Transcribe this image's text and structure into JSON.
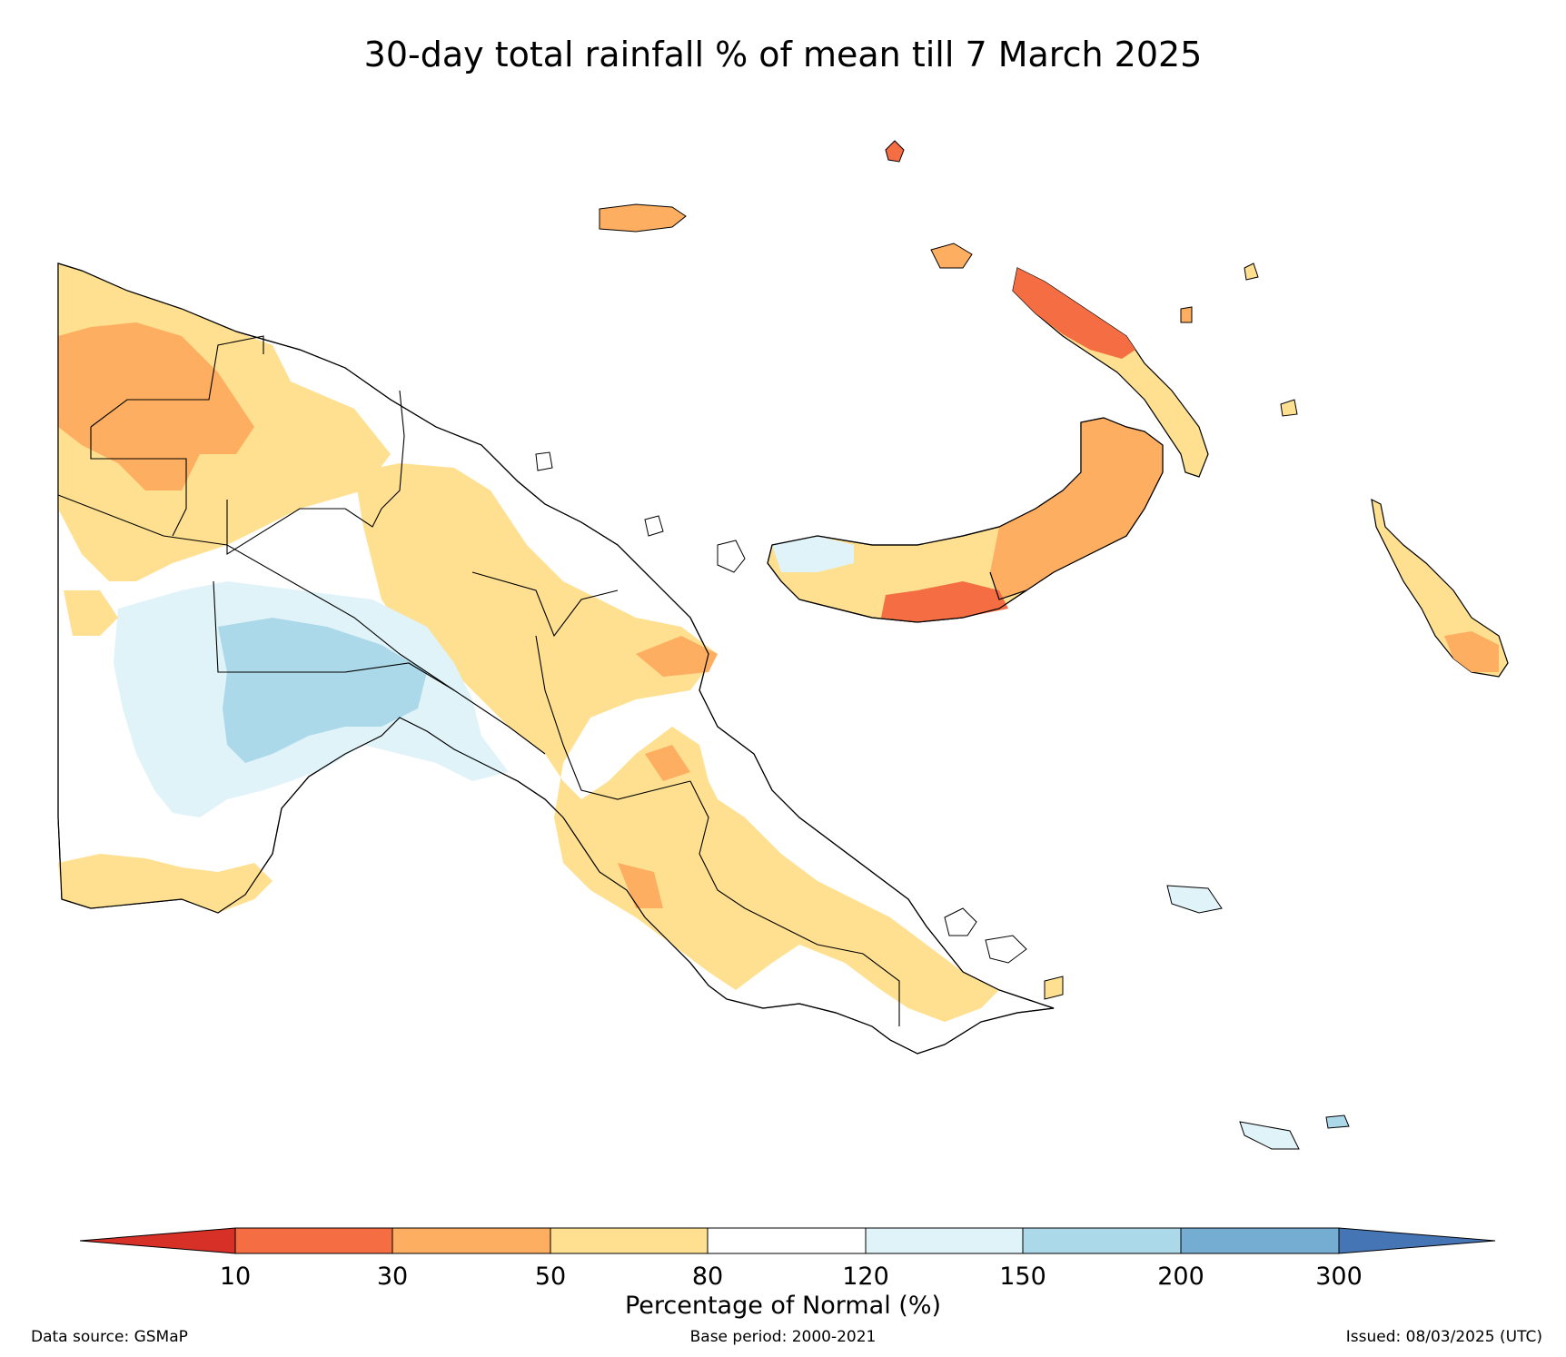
{
  "title": "30-day total rainfall % of mean till 7 March 2025",
  "colorbar": {
    "title": "Percentage of Normal (%)",
    "ticks": [
      "10",
      "30",
      "50",
      "80",
      "120",
      "150",
      "200",
      "300"
    ],
    "colors": [
      "#d73027",
      "#f46d43",
      "#fdae61",
      "#fee090",
      "#ffffff",
      "#e0f3f8",
      "#abd9e9",
      "#74add1",
      "#4575b4"
    ]
  },
  "footer": {
    "source": "Data source: GSMaP",
    "base_period": "Base period: 2000-2021",
    "issued": "Issued: 08/03/2025 (UTC)"
  },
  "legend_classes": [
    {
      "label": "<10",
      "color": "#d73027"
    },
    {
      "label": "10-30",
      "color": "#f46d43"
    },
    {
      "label": "30-50",
      "color": "#fdae61"
    },
    {
      "label": "50-80",
      "color": "#fee090"
    },
    {
      "label": "80-120",
      "color": "#ffffff"
    },
    {
      "label": "120-150",
      "color": "#e0f3f8"
    },
    {
      "label": "150-200",
      "color": "#abd9e9"
    },
    {
      "label": "200-300",
      "color": "#74add1"
    },
    {
      "label": ">300",
      "color": "#4575b4"
    }
  ]
}
